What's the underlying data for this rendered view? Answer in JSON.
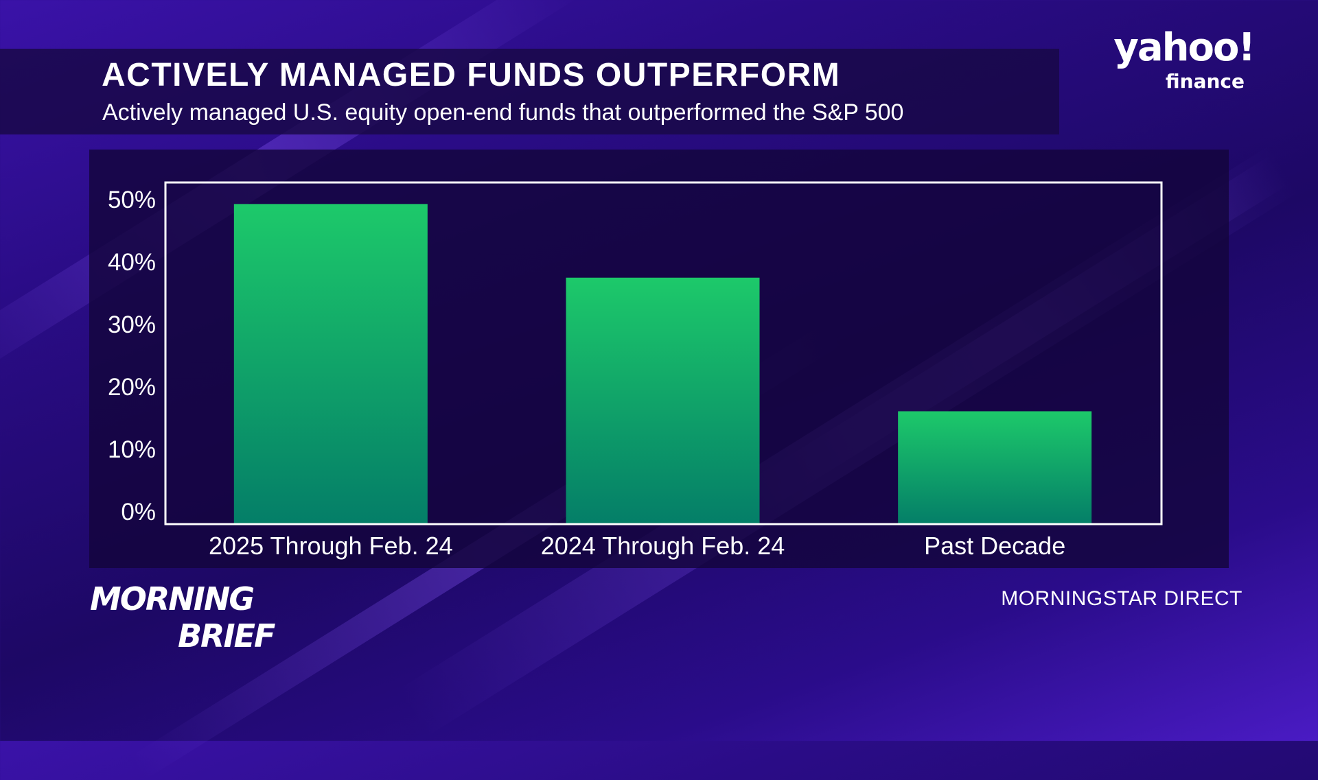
{
  "header": {
    "title": "ACTIVELY MANAGED FUNDS OUTPERFORM",
    "subtitle": "Actively managed U.S. equity open-end funds that outperformed the S&P 500"
  },
  "branding": {
    "network_logo_line1": "yahoo!",
    "network_logo_line2": "finance",
    "show_logo_line1": "MORNING",
    "show_logo_line2": "BRIEF"
  },
  "source": "MORNINGSTAR DIRECT",
  "colors": {
    "bar_top": "#1dc96a",
    "bar_bottom": "#047e68",
    "axis": "#ffffff"
  },
  "chart_data": {
    "type": "bar",
    "title": "ACTIVELY MANAGED FUNDS OUTPERFORM",
    "subtitle": "Actively managed U.S. equity open-end funds that outperformed the S&P 500",
    "categories": [
      "2025 Through Feb. 24",
      "2024 Through Feb. 24",
      "Past Decade"
    ],
    "values": [
      49.3,
      37.5,
      16.1
    ],
    "ylim": [
      0,
      50
    ],
    "yticks": [
      0,
      10,
      20,
      30,
      40,
      50
    ],
    "ytick_labels": [
      "0%",
      "10%",
      "20%",
      "30%",
      "40%",
      "50%"
    ],
    "xlabel": "",
    "ylabel": "",
    "grid": false,
    "legend": "none"
  }
}
